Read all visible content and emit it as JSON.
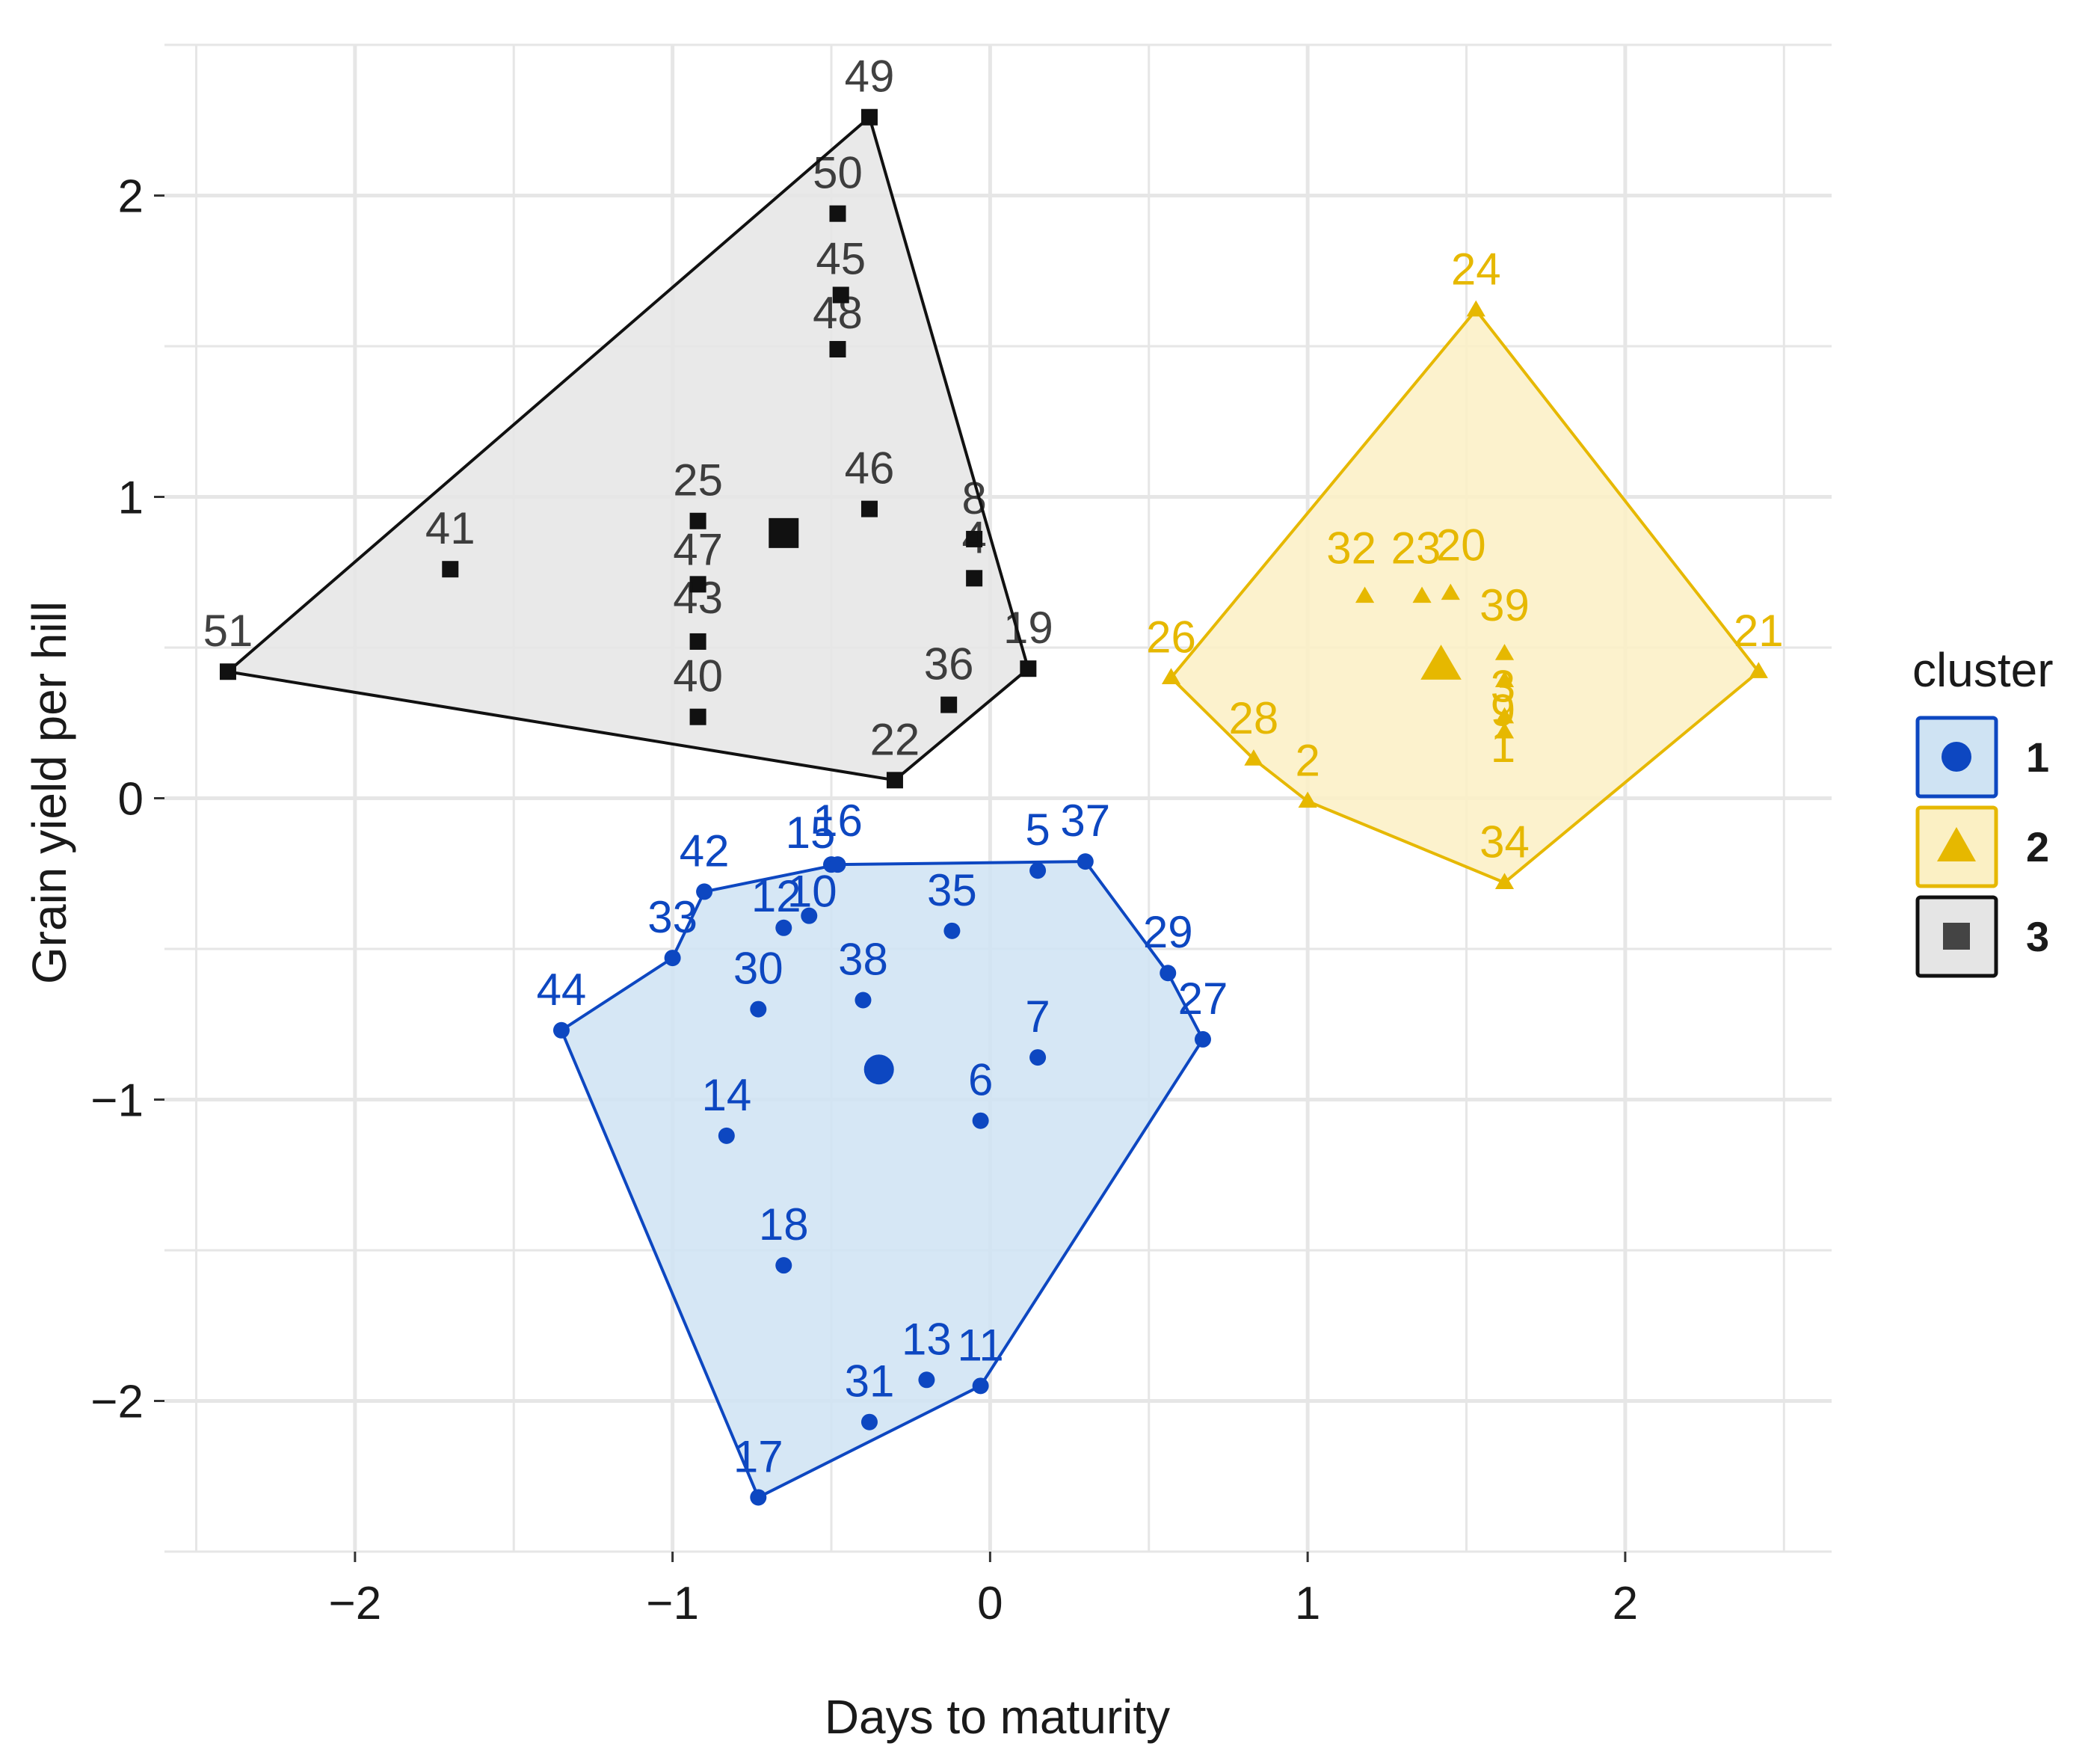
{
  "chart_data": {
    "type": "scatter",
    "xlabel": "Days to maturity",
    "ylabel": "Grain yield per hill",
    "xlim": [
      -2.6,
      2.65
    ],
    "ylim": [
      -2.5,
      2.5
    ],
    "x_ticks": [
      -2,
      -1,
      0,
      1,
      2
    ],
    "y_ticks": [
      -2,
      -1,
      0,
      1,
      2
    ],
    "x_tick_labels": [
      "−2",
      "−1",
      "0",
      "1",
      "2"
    ],
    "y_tick_labels": [
      "−2",
      "−1",
      "0",
      "1",
      "2"
    ],
    "grid": true,
    "legend": {
      "title": "cluster",
      "position": "right"
    },
    "series": [
      {
        "name": "1",
        "color": "#0d47c1",
        "fill": "#cfe3f3",
        "marker": "circle",
        "centroid": [
          -0.35,
          -0.9
        ],
        "hull": [
          "44",
          "33",
          "42",
          "16",
          "37",
          "29",
          "27",
          "11",
          "17"
        ],
        "points": [
          {
            "label": "44",
            "x": -1.35,
            "y": -0.77
          },
          {
            "label": "33",
            "x": -1.0,
            "y": -0.53
          },
          {
            "label": "42",
            "x": -0.9,
            "y": -0.31
          },
          {
            "label": "12",
            "x": -0.65,
            "y": -0.43
          },
          {
            "label": "15",
            "x": -0.5,
            "y": -0.22
          },
          {
            "label": "16",
            "x": -0.48,
            "y": -0.22
          },
          {
            "label": "10",
            "x": -0.57,
            "y": -0.39
          },
          {
            "label": "30",
            "x": -0.73,
            "y": -0.7
          },
          {
            "label": "38",
            "x": -0.4,
            "y": -0.67
          },
          {
            "label": "35",
            "x": -0.12,
            "y": -0.44
          },
          {
            "label": "5",
            "x": 0.15,
            "y": -0.24
          },
          {
            "label": "37",
            "x": 0.3,
            "y": -0.21
          },
          {
            "label": "29",
            "x": 0.56,
            "y": -0.58
          },
          {
            "label": "27",
            "x": 0.67,
            "y": -0.8
          },
          {
            "label": "7",
            "x": 0.15,
            "y": -0.86
          },
          {
            "label": "6",
            "x": -0.03,
            "y": -1.07
          },
          {
            "label": "14",
            "x": -0.83,
            "y": -1.12
          },
          {
            "label": "18",
            "x": -0.65,
            "y": -1.55
          },
          {
            "label": "13",
            "x": -0.2,
            "y": -1.93
          },
          {
            "label": "11",
            "x": -0.03,
            "y": -1.95
          },
          {
            "label": "31",
            "x": -0.38,
            "y": -2.07
          },
          {
            "label": "17",
            "x": -0.73,
            "y": -2.32
          }
        ]
      },
      {
        "name": "2",
        "color": "#e6b800",
        "fill": "#fbf0c4",
        "marker": "triangle",
        "centroid": [
          1.42,
          0.44
        ],
        "hull": [
          "26",
          "24",
          "21",
          "34",
          "2",
          "28"
        ],
        "points": [
          {
            "label": "24",
            "x": 1.53,
            "y": 1.62
          },
          {
            "label": "21",
            "x": 2.42,
            "y": 0.42
          },
          {
            "label": "26",
            "x": 0.57,
            "y": 0.4
          },
          {
            "label": "28",
            "x": 0.83,
            "y": 0.13
          },
          {
            "label": "2",
            "x": 1.0,
            "y": -0.01
          },
          {
            "label": "34",
            "x": 1.62,
            "y": -0.28
          },
          {
            "label": "32",
            "x": 1.18,
            "y": 0.67
          },
          {
            "label": "23",
            "x": 1.36,
            "y": 0.67
          },
          {
            "label": "20",
            "x": 1.45,
            "y": 0.68
          },
          {
            "label": "39",
            "x": 1.62,
            "y": 0.48
          },
          {
            "label": "3",
            "x": 1.62,
            "y": 0.39
          },
          {
            "label": "9",
            "x": 1.62,
            "y": 0.27
          },
          {
            "label": "1",
            "x": 1.62,
            "y": 0.22
          }
        ]
      },
      {
        "name": "3",
        "color": "#111111",
        "fill": "#e5e5e5",
        "marker": "square",
        "centroid": [
          -0.65,
          0.88
        ],
        "hull": [
          "51",
          "49",
          "19",
          "22"
        ],
        "points": [
          {
            "label": "49",
            "x": -0.38,
            "y": 2.26
          },
          {
            "label": "50",
            "x": -0.48,
            "y": 1.94
          },
          {
            "label": "45",
            "x": -0.47,
            "y": 1.67
          },
          {
            "label": "48",
            "x": -0.48,
            "y": 1.49
          },
          {
            "label": "46",
            "x": -0.38,
            "y": 0.96
          },
          {
            "label": "25",
            "x": -0.92,
            "y": 0.92
          },
          {
            "label": "47",
            "x": -0.92,
            "y": 0.71
          },
          {
            "label": "43",
            "x": -0.92,
            "y": 0.52
          },
          {
            "label": "40",
            "x": -0.92,
            "y": 0.27
          },
          {
            "label": "41",
            "x": -1.7,
            "y": 0.76
          },
          {
            "label": "51",
            "x": -2.4,
            "y": 0.42
          },
          {
            "label": "8",
            "x": -0.05,
            "y": 0.86
          },
          {
            "label": "4",
            "x": -0.05,
            "y": 0.73
          },
          {
            "label": "19",
            "x": 0.12,
            "y": 0.43
          },
          {
            "label": "36",
            "x": -0.13,
            "y": 0.31
          },
          {
            "label": "22",
            "x": -0.3,
            "y": 0.06
          }
        ]
      }
    ]
  }
}
